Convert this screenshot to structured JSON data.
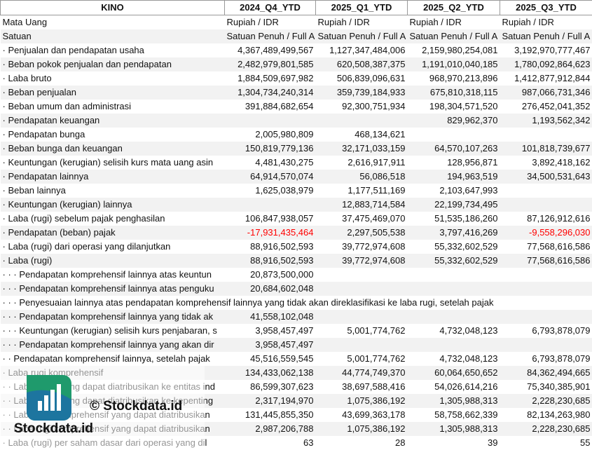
{
  "header": [
    "KINO",
    "2024_Q4_YTD",
    "2025_Q1_YTD",
    "2025_Q2_YTD",
    "2025_Q3_YTD"
  ],
  "rows": [
    {
      "label": "Mata Uang",
      "values": [
        "Rupiah / IDR",
        "Rupiah / IDR",
        "Rupiah / IDR",
        "Rupiah / IDR"
      ]
    },
    {
      "label": "Satuan",
      "values": [
        "Satuan Penuh / Full A",
        "Satuan Penuh / Full A",
        "Satuan Penuh / Full A",
        "Satuan Penuh / Full A"
      ]
    },
    {
      "label": "· Penjualan dan pendapatan usaha",
      "values": [
        "4,367,489,499,567",
        "1,127,347,484,006",
        "2,159,980,254,081",
        "3,192,970,777,467"
      ]
    },
    {
      "label": "· Beban pokok penjualan dan pendapatan",
      "values": [
        "2,482,979,801,585",
        "620,508,387,375",
        "1,191,010,040,185",
        "1,780,092,864,623"
      ]
    },
    {
      "label": "· Laba bruto",
      "values": [
        "1,884,509,697,982",
        "506,839,096,631",
        "968,970,213,896",
        "1,412,877,912,844"
      ]
    },
    {
      "label": "· Beban penjualan",
      "values": [
        "1,304,734,240,314",
        "359,739,184,933",
        "675,810,318,115",
        "987,066,731,346"
      ]
    },
    {
      "label": "· Beban umum dan administrasi",
      "values": [
        "391,884,682,654",
        "92,300,751,934",
        "198,304,571,520",
        "276,452,041,352"
      ]
    },
    {
      "label": "· Pendapatan keuangan",
      "values": [
        null,
        null,
        "829,962,370",
        "1,193,562,342"
      ]
    },
    {
      "label": "· Pendapatan bunga",
      "values": [
        "2,005,980,809",
        "468,134,621",
        null,
        null
      ]
    },
    {
      "label": "· Beban bunga dan keuangan",
      "values": [
        "150,819,779,136",
        "32,171,033,159",
        "64,570,107,263",
        "101,818,739,677"
      ]
    },
    {
      "label": "· Keuntungan (kerugian) selisih kurs mata uang asin",
      "values": [
        "4,481,430,275",
        "2,616,917,911",
        "128,956,871",
        "3,892,418,162"
      ]
    },
    {
      "label": "· Pendapatan lainnya",
      "values": [
        "64,914,570,074",
        "56,086,518",
        "194,963,519",
        "34,500,531,643"
      ]
    },
    {
      "label": "· Beban lainnya",
      "values": [
        "1,625,038,979",
        "1,177,511,169",
        "2,103,647,993",
        null
      ]
    },
    {
      "label": "· Keuntungan (kerugian) lainnya",
      "values": [
        null,
        "12,883,714,584",
        "22,199,734,495",
        null
      ]
    },
    {
      "label": "· Laba (rugi) sebelum pajak penghasilan",
      "values": [
        "106,847,938,057",
        "37,475,469,070",
        "51,535,186,260",
        "87,126,912,616"
      ]
    },
    {
      "label": "· Pendapatan (beban) pajak",
      "values": [
        "-17,931,435,464",
        "2,297,505,538",
        "3,797,416,269",
        "-9,558,296,030"
      ]
    },
    {
      "label": "· Laba (rugi) dari operasi yang dilanjutkan",
      "values": [
        "88,916,502,593",
        "39,772,974,608",
        "55,332,602,529",
        "77,568,616,586"
      ]
    },
    {
      "label": "· Laba (rugi)",
      "values": [
        "88,916,502,593",
        "39,772,974,608",
        "55,332,602,529",
        "77,568,616,586"
      ]
    },
    {
      "label": "· · · Pendapatan komprehensif lainnya atas keuntun",
      "values": [
        "20,873,500,000",
        null,
        null,
        null
      ]
    },
    {
      "label": "· · · Pendapatan komprehensif lainnya atas penguku",
      "values": [
        "20,684,602,048",
        null,
        null,
        null
      ]
    },
    {
      "label": "· · · Penyesuaian lainnya atas pendapatan komprehensif lainnya yang tidak akan direklasifikasi ke laba rugi, setelah pajak",
      "values": []
    },
    {
      "label": "· · · Pendapatan komprehensif lainnya yang tidak ak",
      "values": [
        "41,558,102,048",
        null,
        null,
        null
      ]
    },
    {
      "label": "· · · Keuntungan (kerugian) selisih kurs penjabaran, s",
      "values": [
        "3,958,457,497",
        "5,001,774,762",
        "4,732,048,123",
        "6,793,878,079"
      ]
    },
    {
      "label": "· · · Pendapatan komprehensif lainnya yang akan dir",
      "values": [
        "3,958,457,497",
        null,
        null,
        null
      ]
    },
    {
      "label": "· · Pendapatan komprehensif lainnya, setelah pajak",
      "values": [
        "45,516,559,545",
        "5,001,774,762",
        "4,732,048,123",
        "6,793,878,079"
      ]
    },
    {
      "label": "· Laba rugi komprehensif",
      "values": [
        "134,433,062,138",
        "44,774,749,370",
        "60,064,650,652",
        "84,362,494,665"
      ]
    },
    {
      "label": "· · Laba (rugi) yang dapat diatribusikan ke entitas ind",
      "values": [
        "86,599,307,623",
        "38,697,588,416",
        "54,026,614,216",
        "75,340,385,901"
      ]
    },
    {
      "label": "· · Laba (rugi) yang dapat diatribusikan ke kepenting",
      "values": [
        "2,317,194,970",
        "1,075,386,192",
        "1,305,988,313",
        "2,228,230,685"
      ]
    },
    {
      "label": "· · Laba rugi komprehensif yang dapat diatribusikan",
      "values": [
        "131,445,855,350",
        "43,699,363,178",
        "58,758,662,339",
        "82,134,263,980"
      ]
    },
    {
      "label": "· · Laba rugi komprehensif yang dapat diatribusikan",
      "values": [
        "2,987,206,788",
        "1,075,386,192",
        "1,305,988,313",
        "2,228,230,685"
      ]
    },
    {
      "label": "· Laba (rugi) per saham dasar dari operasi yang dil",
      "values": [
        "63",
        "28",
        "39",
        "55"
      ]
    }
  ],
  "watermark": {
    "text": "© Stockdata.id",
    "brand": "Stockdata.id"
  }
}
